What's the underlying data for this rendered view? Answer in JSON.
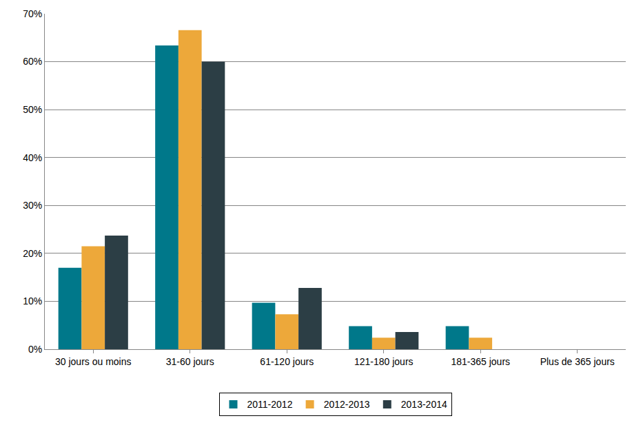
{
  "chart_data": {
    "type": "bar",
    "categories": [
      "30 jours ou moins",
      "31-60 jours",
      "61-120 jours",
      "121-180 jours",
      "181-365 jours",
      "Plus de 365 jours"
    ],
    "series": [
      {
        "name": "2011-2012",
        "color": "#00788A",
        "values": [
          17.0,
          63.4,
          9.7,
          4.8,
          4.8,
          0
        ]
      },
      {
        "name": "2012-2013",
        "color": "#EDA83A",
        "values": [
          21.5,
          66.6,
          7.3,
          2.4,
          2.4,
          0
        ]
      },
      {
        "name": "2013-2014",
        "color": "#2C3E45",
        "values": [
          23.7,
          60.0,
          12.8,
          3.6,
          0,
          0
        ]
      }
    ],
    "ylim": [
      0,
      70
    ],
    "yticks": [
      {
        "value": 0,
        "label": "0%"
      },
      {
        "value": 10,
        "label": "10%"
      },
      {
        "value": 20,
        "label": "20%"
      },
      {
        "value": 30,
        "label": "30%"
      },
      {
        "value": 40,
        "label": "40%"
      },
      {
        "value": 50,
        "label": "50%"
      },
      {
        "value": 60,
        "label": "60%"
      },
      {
        "value": 70,
        "label": "70%"
      }
    ],
    "grid": true,
    "legend": "bottom"
  }
}
